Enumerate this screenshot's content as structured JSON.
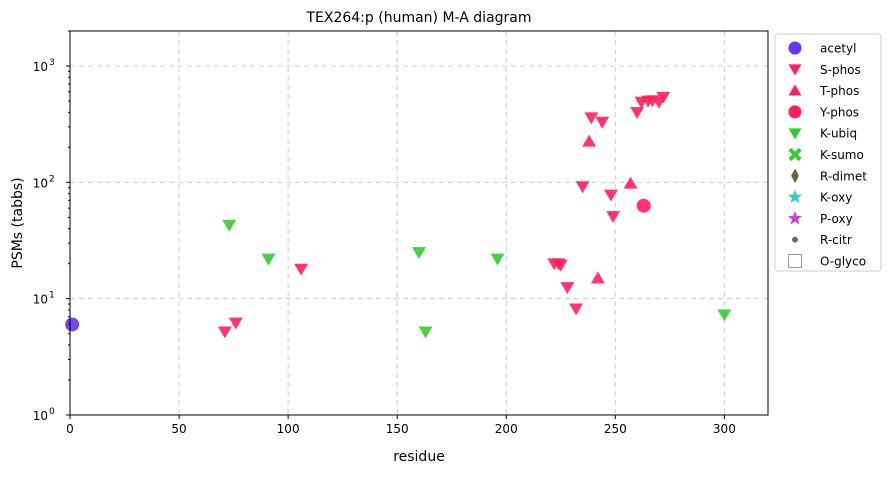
{
  "chart_data": {
    "type": "scatter",
    "title": "TEX264:p (human) M-A diagram",
    "xlabel": "residue",
    "ylabel": "PSMs (tabbs)",
    "xlim": [
      0,
      320
    ],
    "ylim": [
      1,
      2000
    ],
    "yscale": "log",
    "grid": true,
    "legend_position": "outside-right",
    "x_ticks": [
      0,
      50,
      100,
      150,
      200,
      250,
      300
    ],
    "y_ticks": [
      {
        "value": 1,
        "base": "10",
        "exp": "0"
      },
      {
        "value": 10,
        "base": "10",
        "exp": "1"
      },
      {
        "value": 100,
        "base": "10",
        "exp": "2"
      },
      {
        "value": 1000,
        "base": "10",
        "exp": "3"
      }
    ],
    "series": [
      {
        "name": "acetyl",
        "marker": "circle",
        "color": "#6633ee",
        "points": [
          [
            1,
            6
          ]
        ]
      },
      {
        "name": "S-phos",
        "marker": "triangle-down",
        "color": "#ff1f5b",
        "points": [
          [
            71,
            5.2
          ],
          [
            76,
            6.2
          ],
          [
            106,
            18
          ],
          [
            222,
            20
          ],
          [
            224,
            20
          ],
          [
            225,
            19.5
          ],
          [
            228,
            12.5
          ],
          [
            232,
            8.2
          ],
          [
            235,
            92
          ],
          [
            239,
            360
          ],
          [
            244,
            330
          ],
          [
            248,
            78
          ],
          [
            249,
            51
          ],
          [
            260,
            400
          ],
          [
            262,
            490
          ],
          [
            265,
            500
          ],
          [
            267,
            505
          ],
          [
            270,
            490
          ],
          [
            272,
            540
          ]
        ]
      },
      {
        "name": "T-phos",
        "marker": "triangle-up",
        "color": "#ff1f5b",
        "points": [
          [
            238,
            225
          ],
          [
            242,
            15
          ],
          [
            257,
            98
          ]
        ]
      },
      {
        "name": "Y-phos",
        "marker": "circle",
        "color": "#ff1f5b",
        "points": [
          [
            263,
            63
          ]
        ]
      },
      {
        "name": "K-ubiq",
        "marker": "triangle-down",
        "color": "#33cc33",
        "points": [
          [
            73,
            43
          ],
          [
            91,
            22
          ],
          [
            160,
            25
          ],
          [
            163,
            5.2
          ],
          [
            196,
            22
          ],
          [
            300,
            7.3
          ]
        ]
      },
      {
        "name": "K-sumo",
        "marker": "x",
        "color": "#33cc33",
        "points": []
      },
      {
        "name": "R-dimet",
        "marker": "diamond",
        "color": "#666644",
        "points": []
      },
      {
        "name": "K-oxy",
        "marker": "star",
        "color": "#33cccc",
        "points": []
      },
      {
        "name": "P-oxy",
        "marker": "star",
        "color": "#cc44cc",
        "points": []
      },
      {
        "name": "R-citr",
        "marker": "dot",
        "color": "#666666",
        "points": []
      },
      {
        "name": "O-glyco",
        "marker": "square-open",
        "color": "#999999",
        "points": []
      }
    ]
  }
}
